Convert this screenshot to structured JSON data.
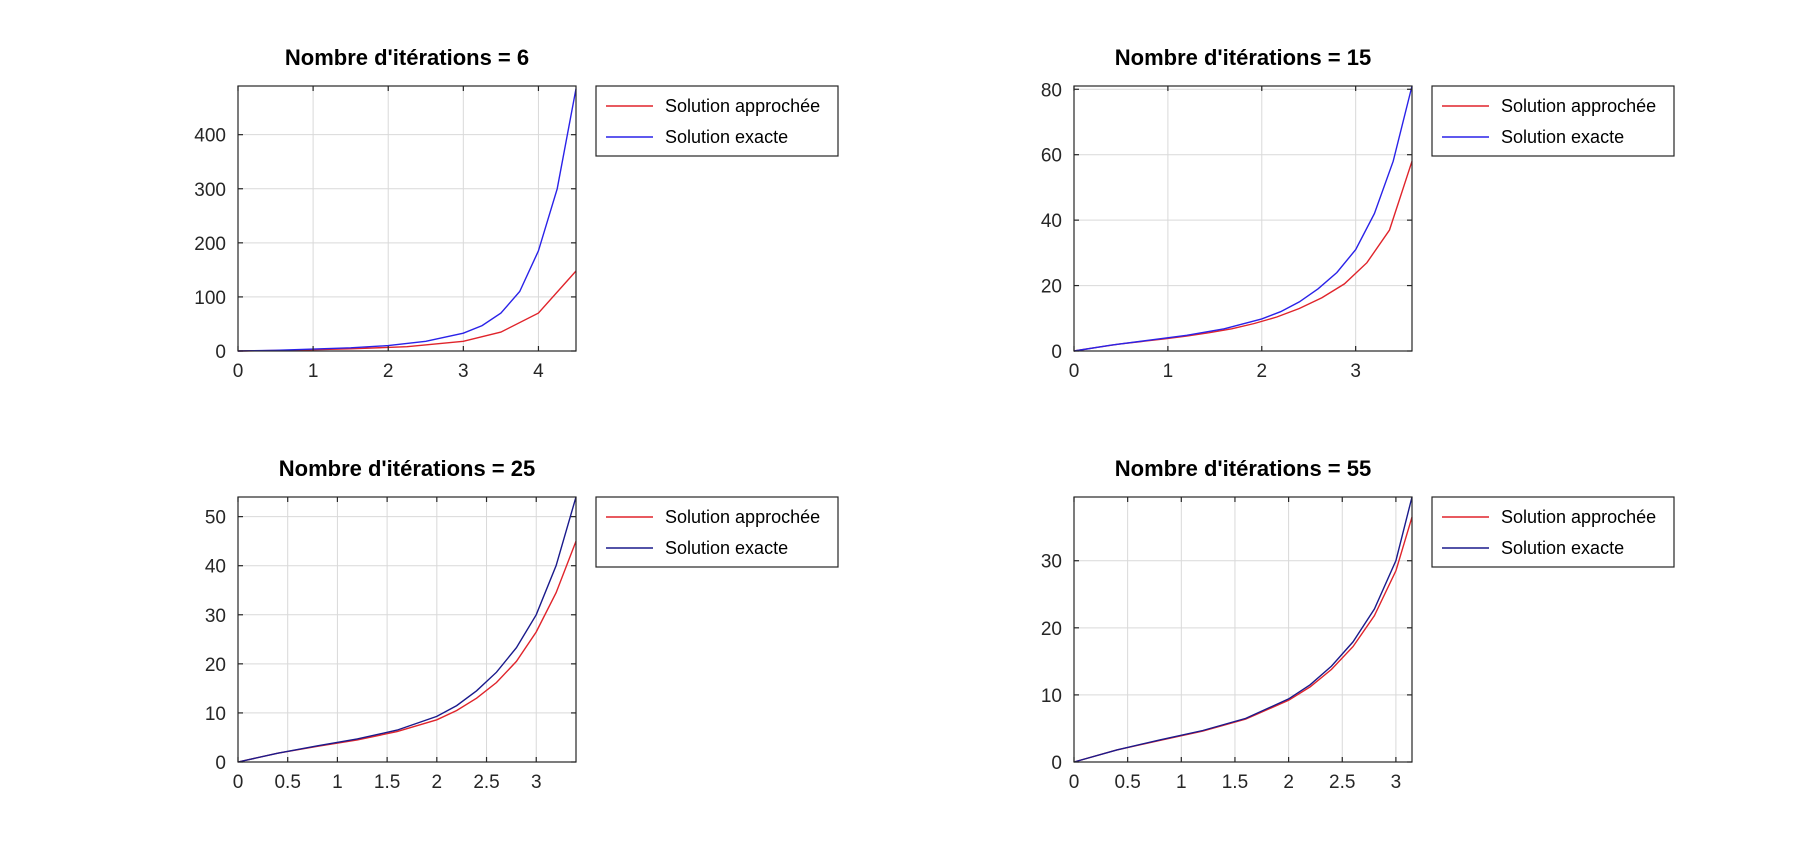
{
  "chart_data": [
    {
      "type": "line",
      "title": "Nombre d'itérations = 6",
      "xlabel": "",
      "ylabel": "",
      "xlim": [
        0,
        4.5
      ],
      "ylim": [
        0,
        490
      ],
      "xticks": [
        0,
        1,
        2,
        3,
        4
      ],
      "xtick_labels": [
        "0",
        "1",
        "2",
        "3",
        "4"
      ],
      "yticks": [
        0,
        100,
        200,
        300,
        400
      ],
      "ytick_labels": [
        "0",
        "100",
        "200",
        "300",
        "400"
      ],
      "grid": true,
      "legend_position": "outside-top-right",
      "series": [
        {
          "name": "Solution approchée",
          "color": "#e0242b",
          "x": [
            0,
            0.75,
            1.5,
            2.25,
            3,
            3.5,
            4,
            4.5
          ],
          "y": [
            0,
            1.5,
            4,
            8,
            18,
            35,
            70,
            148
          ]
        },
        {
          "name": "Solution exacte",
          "color": "#2a22e8",
          "x": [
            0,
            0.5,
            1,
            1.5,
            2,
            2.5,
            3,
            3.25,
            3.5,
            3.75,
            4,
            4.25,
            4.5
          ],
          "y": [
            0,
            1.3,
            3.5,
            6,
            10,
            18,
            33,
            47,
            70,
            110,
            185,
            300,
            485
          ]
        }
      ]
    },
    {
      "type": "line",
      "title": "Nombre d'itérations = 15",
      "xlabel": "",
      "ylabel": "",
      "xlim": [
        0,
        3.6
      ],
      "ylim": [
        0,
        81
      ],
      "xticks": [
        0,
        1,
        2,
        3
      ],
      "xtick_labels": [
        "0",
        "1",
        "2",
        "3"
      ],
      "yticks": [
        0,
        20,
        40,
        60,
        80
      ],
      "ytick_labels": [
        "0",
        "20",
        "40",
        "60",
        "80"
      ],
      "grid": true,
      "legend_position": "outside-top-right",
      "series": [
        {
          "name": "Solution approchée",
          "color": "#e0242b",
          "x": [
            0,
            0.24,
            0.48,
            0.72,
            0.96,
            1.2,
            1.44,
            1.68,
            1.92,
            2.16,
            2.4,
            2.64,
            2.88,
            3.12,
            3.36,
            3.6
          ],
          "y": [
            0,
            1.1,
            2.1,
            2.9,
            3.7,
            4.6,
            5.6,
            6.8,
            8.4,
            10.4,
            13,
            16.3,
            20.5,
            27,
            37,
            58
          ]
        },
        {
          "name": "Solution exacte",
          "color": "#2a22e8",
          "x": [
            0,
            0.4,
            0.8,
            1.2,
            1.6,
            2,
            2.2,
            2.4,
            2.6,
            2.8,
            3,
            3.2,
            3.4,
            3.6
          ],
          "y": [
            0,
            1.8,
            3.3,
            4.8,
            6.8,
            9.8,
            12,
            15,
            19,
            24,
            31,
            42,
            58,
            81
          ]
        }
      ]
    },
    {
      "type": "line",
      "title": "Nombre d'itérations = 25",
      "xlabel": "",
      "ylabel": "",
      "xlim": [
        0,
        3.4
      ],
      "ylim": [
        0,
        54
      ],
      "xticks": [
        0,
        0.5,
        1,
        1.5,
        2,
        2.5,
        3
      ],
      "xtick_labels": [
        "0",
        "0.5",
        "1",
        "1.5",
        "2",
        "2.5",
        "3"
      ],
      "yticks": [
        0,
        10,
        20,
        30,
        40,
        50
      ],
      "ytick_labels": [
        "0",
        "10",
        "20",
        "30",
        "40",
        "50"
      ],
      "grid": true,
      "legend_position": "outside-top-right",
      "series": [
        {
          "name": "Solution approchée",
          "color": "#e0242b",
          "x": [
            0,
            0.4,
            0.8,
            1.2,
            1.6,
            2,
            2.2,
            2.4,
            2.6,
            2.8,
            3,
            3.2,
            3.4
          ],
          "y": [
            0,
            1.8,
            3.2,
            4.5,
            6.2,
            8.6,
            10.5,
            13,
            16.2,
            20.5,
            26.5,
            34.5,
            45
          ]
        },
        {
          "name": "Solution exacte",
          "color": "#1a1a8c",
          "x": [
            0,
            0.4,
            0.8,
            1.2,
            1.6,
            2,
            2.2,
            2.4,
            2.6,
            2.8,
            3,
            3.2,
            3.4
          ],
          "y": [
            0,
            1.8,
            3.3,
            4.7,
            6.5,
            9.3,
            11.5,
            14.5,
            18.3,
            23.3,
            30,
            40,
            54
          ]
        }
      ]
    },
    {
      "type": "line",
      "title": "Nombre d'itérations = 55",
      "xlabel": "",
      "ylabel": "",
      "xlim": [
        0,
        3.15
      ],
      "ylim": [
        0,
        39.5
      ],
      "xticks": [
        0,
        0.5,
        1,
        1.5,
        2,
        2.5,
        3
      ],
      "xtick_labels": [
        "0",
        "0.5",
        "1",
        "1.5",
        "2",
        "2.5",
        "3"
      ],
      "yticks": [
        0,
        10,
        20,
        30
      ],
      "ytick_labels": [
        "0",
        "10",
        "20",
        "30"
      ],
      "grid": true,
      "legend_position": "outside-top-right",
      "series": [
        {
          "name": "Solution approchée",
          "color": "#e0242b",
          "x": [
            0,
            0.4,
            0.8,
            1.2,
            1.6,
            2,
            2.2,
            2.4,
            2.6,
            2.8,
            3,
            3.15
          ],
          "y": [
            0,
            1.8,
            3.2,
            4.6,
            6.4,
            9.2,
            11.2,
            13.8,
            17.2,
            21.8,
            28.5,
            36.5
          ]
        },
        {
          "name": "Solution exacte",
          "color": "#1a1a8c",
          "x": [
            0,
            0.4,
            0.8,
            1.2,
            1.6,
            2,
            2.2,
            2.4,
            2.6,
            2.8,
            3,
            3.15
          ],
          "y": [
            0,
            1.8,
            3.3,
            4.7,
            6.5,
            9.4,
            11.5,
            14.3,
            17.9,
            22.8,
            30,
            39.5
          ]
        }
      ]
    }
  ]
}
